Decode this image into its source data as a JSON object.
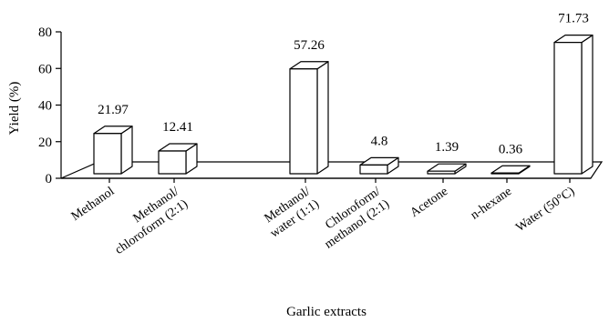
{
  "chart_data": {
    "type": "bar",
    "title": "",
    "xlabel": "Garlic extracts",
    "ylabel": "Yield (%)",
    "ylim": [
      0,
      80
    ],
    "yticks": [
      0,
      20,
      40,
      60,
      80
    ],
    "grid": false,
    "style": "3d",
    "categories": [
      [
        "Methanol"
      ],
      [
        "Methanol/",
        "chloroform (2:1)"
      ],
      [
        "Methanol/",
        "water (1:1)"
      ],
      [
        "Chloroform/",
        "methanol (2:1)"
      ],
      [
        "Acetone"
      ],
      [
        "n-hexane"
      ],
      [
        "Water (50°C)"
      ]
    ],
    "values": [
      21.97,
      12.41,
      57.26,
      4.8,
      1.39,
      0.36,
      71.73
    ],
    "labels": [
      "21.97",
      "12.41",
      "57.26",
      "4.8",
      "1.39",
      "0.36",
      "71.73"
    ]
  }
}
